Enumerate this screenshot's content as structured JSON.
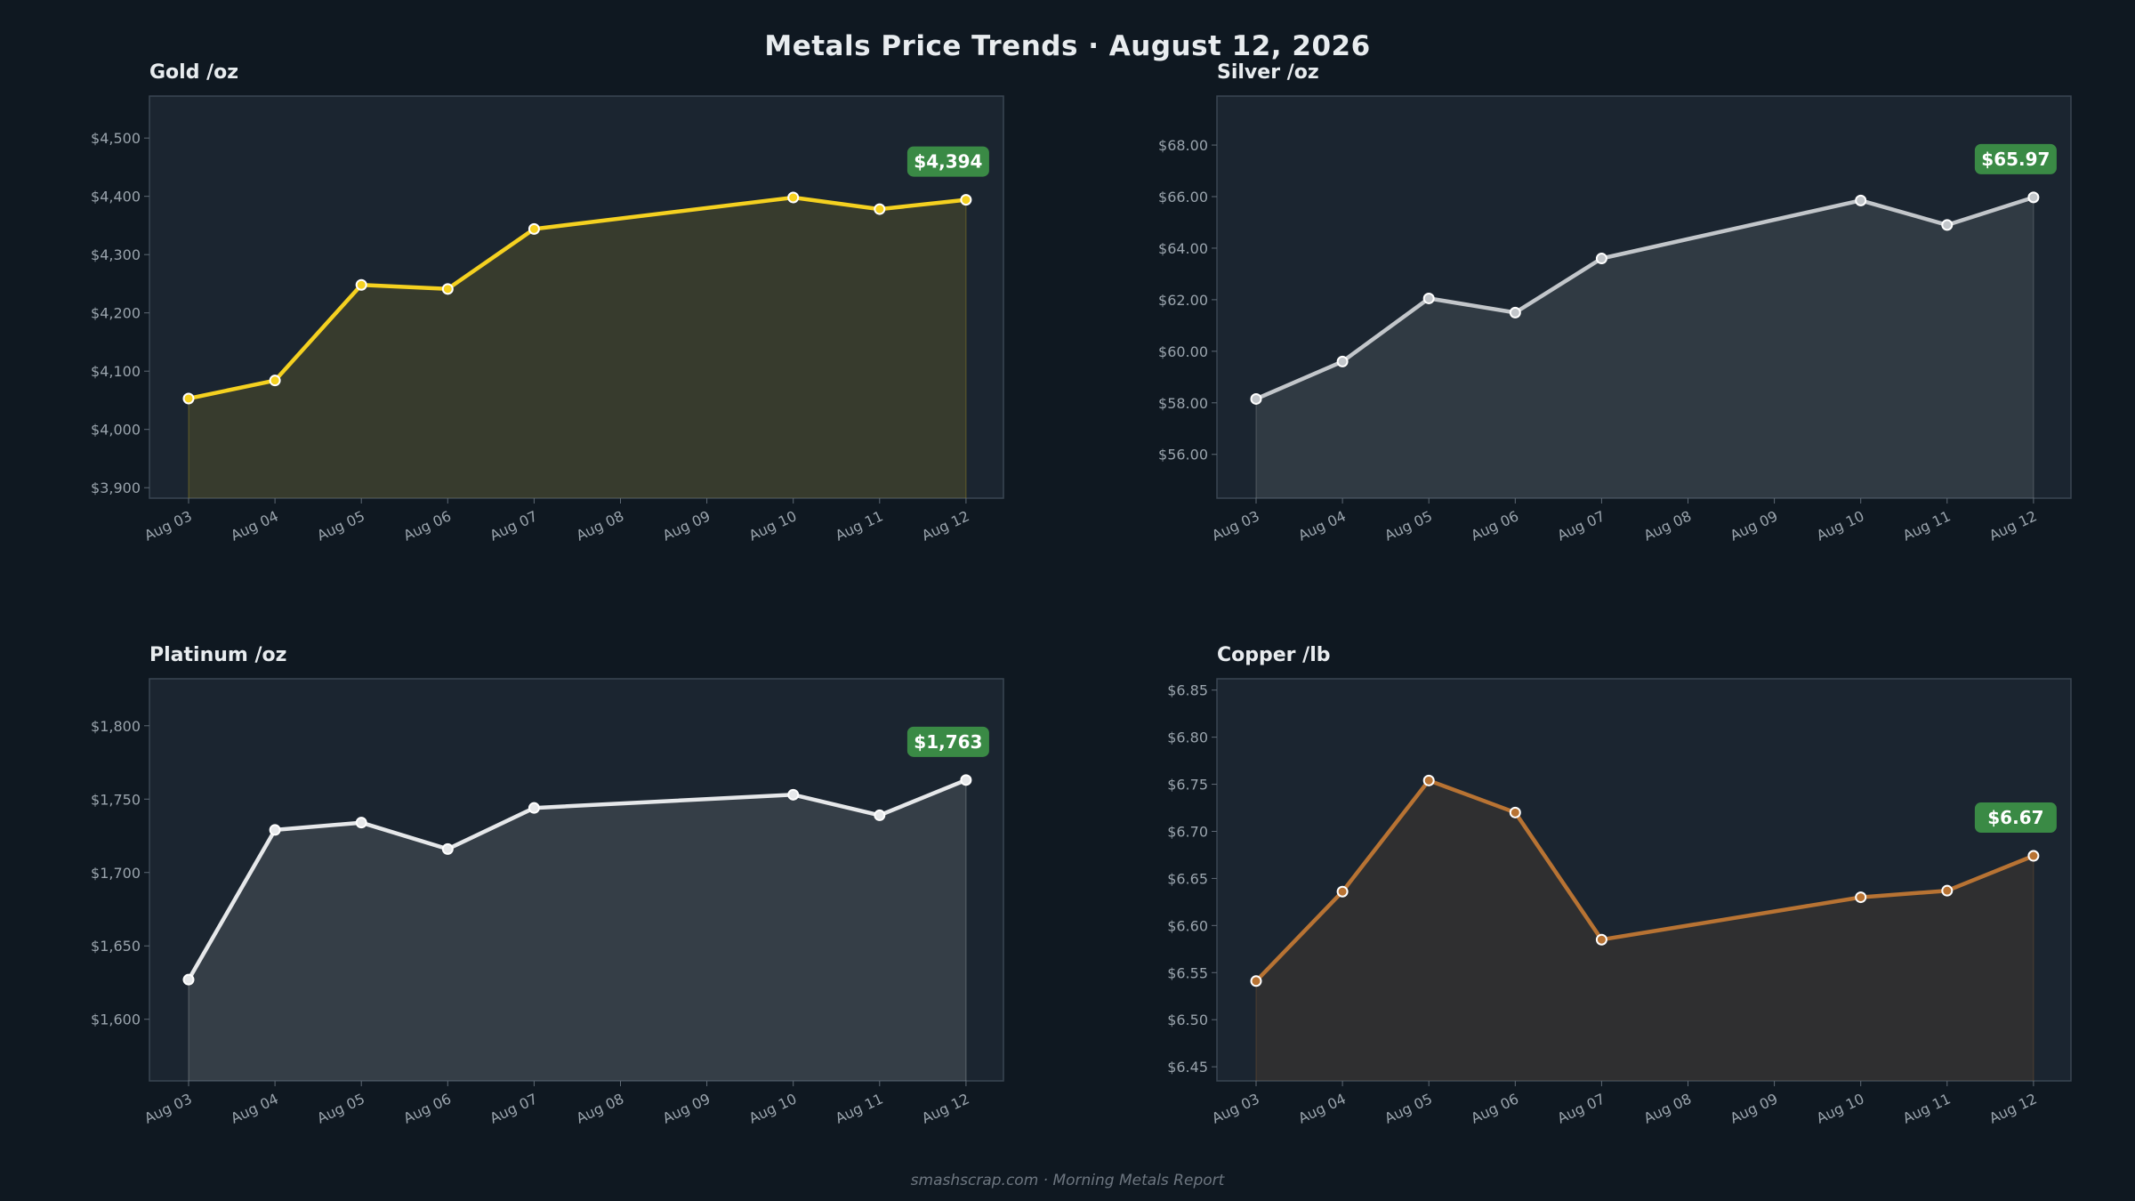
{
  "page": {
    "title": "Metals Price Trends  ·  August 12, 2026",
    "footer": "smashscrap.com  ·  Morning Metals Report"
  },
  "colors": {
    "background": "#0f1821",
    "plot_background": "#1b2530",
    "badge": "#3a8a45",
    "gold": "#f5d120",
    "silver": "#c2c6ca",
    "platinum": "#e6e8ea",
    "copper": "#b87333"
  },
  "chart_data": [
    {
      "type": "area",
      "title": "Gold  /oz",
      "color_key": "gold",
      "x": [
        "Aug 03",
        "Aug 04",
        "Aug 05",
        "Aug 06",
        "Aug 07",
        "Aug 08",
        "Aug 09",
        "Aug 10",
        "Aug 11",
        "Aug 12"
      ],
      "points": [
        {
          "x": "Aug 03",
          "y": 4053
        },
        {
          "x": "Aug 04",
          "y": 4084
        },
        {
          "x": "Aug 05",
          "y": 4248
        },
        {
          "x": "Aug 06",
          "y": 4241
        },
        {
          "x": "Aug 07",
          "y": 4344
        },
        {
          "x": "Aug 10",
          "y": 4398
        },
        {
          "x": "Aug 11",
          "y": 4378
        },
        {
          "x": "Aug 12",
          "y": 4394
        }
      ],
      "ylim": [
        3882,
        4572
      ],
      "yticks": [
        3900,
        4000,
        4100,
        4200,
        4300,
        4400,
        4500
      ],
      "ytick_labels": [
        "$3,900",
        "$4,000",
        "$4,100",
        "$4,200",
        "$4,300",
        "$4,400",
        "$4,500"
      ],
      "latest_label": "$4,394",
      "grid": false
    },
    {
      "type": "area",
      "title": "Silver  /oz",
      "color_key": "silver",
      "x": [
        "Aug 03",
        "Aug 04",
        "Aug 05",
        "Aug 06",
        "Aug 07",
        "Aug 08",
        "Aug 09",
        "Aug 10",
        "Aug 11",
        "Aug 12"
      ],
      "points": [
        {
          "x": "Aug 03",
          "y": 58.15
        },
        {
          "x": "Aug 04",
          "y": 59.6
        },
        {
          "x": "Aug 05",
          "y": 62.05
        },
        {
          "x": "Aug 06",
          "y": 61.5
        },
        {
          "x": "Aug 07",
          "y": 63.6
        },
        {
          "x": "Aug 10",
          "y": 65.85
        },
        {
          "x": "Aug 11",
          "y": 64.9
        },
        {
          "x": "Aug 12",
          "y": 65.97
        }
      ],
      "ylim": [
        54.3,
        69.9
      ],
      "yticks": [
        56,
        58,
        60,
        62,
        64,
        66,
        68
      ],
      "ytick_labels": [
        "$56.00",
        "$58.00",
        "$60.00",
        "$62.00",
        "$64.00",
        "$66.00",
        "$68.00"
      ],
      "latest_label": "$65.97",
      "grid": false
    },
    {
      "type": "area",
      "title": "Platinum  /oz",
      "color_key": "platinum",
      "x": [
        "Aug 03",
        "Aug 04",
        "Aug 05",
        "Aug 06",
        "Aug 07",
        "Aug 08",
        "Aug 09",
        "Aug 10",
        "Aug 11",
        "Aug 12"
      ],
      "points": [
        {
          "x": "Aug 03",
          "y": 1627
        },
        {
          "x": "Aug 04",
          "y": 1729
        },
        {
          "x": "Aug 05",
          "y": 1734
        },
        {
          "x": "Aug 06",
          "y": 1716
        },
        {
          "x": "Aug 07",
          "y": 1744
        },
        {
          "x": "Aug 10",
          "y": 1753
        },
        {
          "x": "Aug 11",
          "y": 1739
        },
        {
          "x": "Aug 12",
          "y": 1763
        }
      ],
      "ylim": [
        1558,
        1832
      ],
      "yticks": [
        1600,
        1650,
        1700,
        1750,
        1800
      ],
      "ytick_labels": [
        "$1,600",
        "$1,650",
        "$1,700",
        "$1,750",
        "$1,800"
      ],
      "latest_label": "$1,763",
      "grid": false
    },
    {
      "type": "area",
      "title": "Copper  /lb",
      "color_key": "copper",
      "x": [
        "Aug 03",
        "Aug 04",
        "Aug 05",
        "Aug 06",
        "Aug 07",
        "Aug 08",
        "Aug 09",
        "Aug 10",
        "Aug 11",
        "Aug 12"
      ],
      "points": [
        {
          "x": "Aug 03",
          "y": 6.541
        },
        {
          "x": "Aug 04",
          "y": 6.636
        },
        {
          "x": "Aug 05",
          "y": 6.754
        },
        {
          "x": "Aug 06",
          "y": 6.72
        },
        {
          "x": "Aug 07",
          "y": 6.585
        },
        {
          "x": "Aug 10",
          "y": 6.63
        },
        {
          "x": "Aug 11",
          "y": 6.637
        },
        {
          "x": "Aug 12",
          "y": 6.674
        }
      ],
      "ylim": [
        6.435,
        6.862
      ],
      "yticks": [
        6.45,
        6.5,
        6.55,
        6.6,
        6.65,
        6.7,
        6.75,
        6.8,
        6.85
      ],
      "ytick_labels": [
        "$6.45",
        "$6.50",
        "$6.55",
        "$6.60",
        "$6.65",
        "$6.70",
        "$6.75",
        "$6.80",
        "$6.85"
      ],
      "latest_label": "$6.67",
      "grid": false
    }
  ]
}
